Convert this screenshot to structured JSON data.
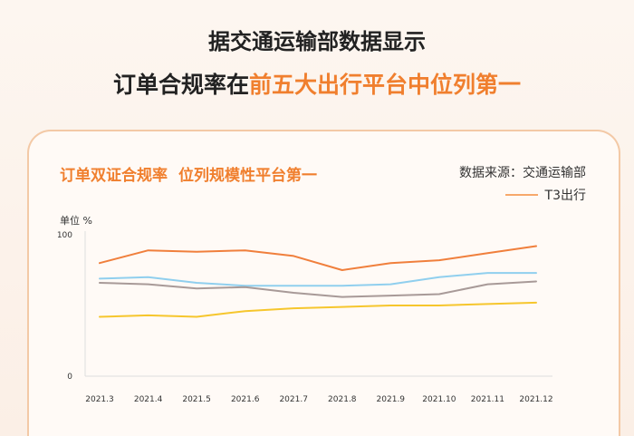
{
  "headline": {
    "line1": "据交通运输部数据显示",
    "line2_prefix": "订单合规率在",
    "line2_highlight": "前五大出行平台中位列第一"
  },
  "card": {
    "title_left": "订单双证合规率",
    "title_right": "位列规模性平台第一",
    "source": "数据来源：交通运输部",
    "legend": "T3出行",
    "unit": "单位 %"
  },
  "chart_data": {
    "type": "line",
    "x": [
      "2021.3",
      "2021.4",
      "2021.5",
      "2021.6",
      "2021.7",
      "2021.8",
      "2021.9",
      "2021.10",
      "2021.11",
      "2021.12"
    ],
    "ylim": [
      0,
      100
    ],
    "yticks": [
      0,
      100
    ],
    "grid": false,
    "legend_position": "top-right",
    "series": [
      {
        "name": "T3出行",
        "color": "#f07f3c",
        "values": [
          80,
          89,
          88,
          89,
          85,
          75,
          80,
          82,
          87,
          92
        ]
      },
      {
        "color": "#90cfee",
        "values": [
          69,
          70,
          66,
          64,
          64,
          64,
          65,
          70,
          73,
          73
        ]
      },
      {
        "color": "#a89a98",
        "values": [
          66,
          65,
          62,
          63,
          59,
          56,
          57,
          58,
          65,
          67
        ]
      },
      {
        "color": "#f6c62d",
        "values": [
          42,
          43,
          42,
          46,
          48,
          49,
          50,
          50,
          51,
          52
        ]
      }
    ]
  }
}
